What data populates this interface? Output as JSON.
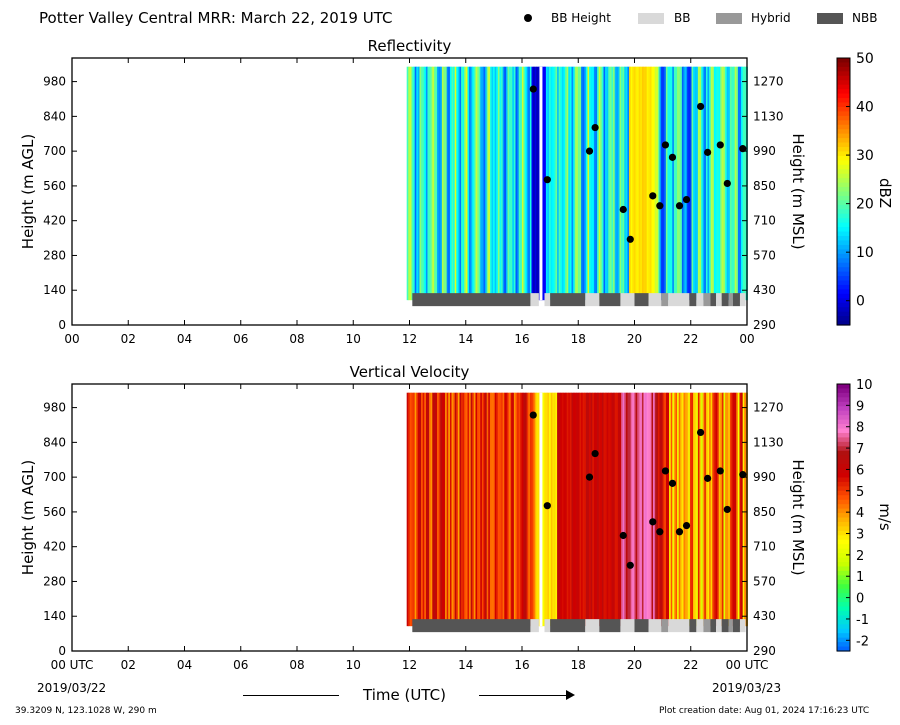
{
  "header": {
    "title": "Potter Valley Central MRR:  March 22, 2019 UTC",
    "legend": [
      {
        "label": "BB Height",
        "color": "#000000",
        "marker": "dot"
      },
      {
        "label": "BB",
        "color": "#d9d9d9",
        "marker": "swatch"
      },
      {
        "label": "Hybrid",
        "color": "#999999",
        "marker": "swatch"
      },
      {
        "label": "NBB",
        "color": "#555555",
        "marker": "swatch"
      }
    ]
  },
  "footer": {
    "location": "39.3209 N, 123.1028 W, 290 m",
    "created": "Plot creation date: Aug 01, 2024 17:16:23 UTC",
    "xlabel": "Time (UTC)",
    "start_date": "2019/03/22",
    "end_date": "2019/03/23"
  },
  "chart_data": [
    {
      "type": "heatmap",
      "title": "Reflectivity",
      "ylabel": "Height (m AGL)",
      "y2label": "Height (m MSL)",
      "colorbar_label": "dBZ",
      "colorbar_range": [
        -5,
        50
      ],
      "colorbar_ticks": [
        "50",
        "40",
        "30",
        "20",
        "10",
        "0"
      ],
      "colormap": [
        "#00007f",
        "#0000ff",
        "#007fff",
        "#00ffff",
        "#7fff7f",
        "#ffff00",
        "#ff7f00",
        "#ff0000",
        "#7f0000"
      ],
      "x_ticks": [
        "00",
        "02",
        "04",
        "06",
        "08",
        "10",
        "12",
        "14",
        "16",
        "18",
        "20",
        "22",
        "00"
      ],
      "xlim": [
        0,
        24
      ],
      "y_ticks": [
        "0",
        "140",
        "280",
        "420",
        "560",
        "700",
        "840",
        "980"
      ],
      "ylim": [
        0,
        1075
      ],
      "y2_ticks": [
        "290",
        "430",
        "570",
        "710",
        "850",
        "990",
        "1130",
        "1270"
      ],
      "data_time_range": [
        11.9,
        24
      ],
      "data_height_range": [
        100,
        1040
      ],
      "bb_points": [
        [
          16.4,
          950
        ],
        [
          16.9,
          585
        ],
        [
          18.4,
          700
        ],
        [
          18.6,
          795
        ],
        [
          19.6,
          465
        ],
        [
          19.85,
          345
        ],
        [
          20.65,
          520
        ],
        [
          20.9,
          480
        ],
        [
          21.1,
          725
        ],
        [
          21.35,
          675
        ],
        [
          21.6,
          480
        ],
        [
          21.85,
          505
        ],
        [
          22.35,
          880
        ],
        [
          22.6,
          695
        ],
        [
          23.05,
          725
        ],
        [
          23.3,
          570
        ],
        [
          23.85,
          710
        ]
      ],
      "bb_bar": [
        {
          "start": 12.1,
          "end": 16.3,
          "type": "NBB"
        },
        {
          "start": 16.3,
          "end": 16.6,
          "type": "BB"
        },
        {
          "start": 16.8,
          "end": 17.0,
          "type": "BB"
        },
        {
          "start": 17.0,
          "end": 18.25,
          "type": "NBB"
        },
        {
          "start": 18.25,
          "end": 18.75,
          "type": "BB"
        },
        {
          "start": 18.75,
          "end": 19.5,
          "type": "NBB"
        },
        {
          "start": 19.5,
          "end": 20.0,
          "type": "BB"
        },
        {
          "start": 20.0,
          "end": 20.5,
          "type": "NBB"
        },
        {
          "start": 20.5,
          "end": 20.95,
          "type": "BB"
        },
        {
          "start": 20.95,
          "end": 21.2,
          "type": "Hybrid"
        },
        {
          "start": 21.2,
          "end": 21.95,
          "type": "BB"
        },
        {
          "start": 21.95,
          "end": 22.2,
          "type": "NBB"
        },
        {
          "start": 22.2,
          "end": 22.45,
          "type": "BB"
        },
        {
          "start": 22.45,
          "end": 22.7,
          "type": "Hybrid"
        },
        {
          "start": 22.7,
          "end": 22.9,
          "type": "NBB"
        },
        {
          "start": 22.9,
          "end": 23.1,
          "type": "BB"
        },
        {
          "start": 23.1,
          "end": 23.35,
          "type": "NBB"
        },
        {
          "start": 23.35,
          "end": 23.5,
          "type": "Hybrid"
        },
        {
          "start": 23.5,
          "end": 23.75,
          "type": "NBB"
        },
        {
          "start": 23.75,
          "end": 23.95,
          "type": "BB"
        }
      ],
      "grid": false
    },
    {
      "type": "heatmap",
      "title": "Vertical Velocity",
      "ylabel": "Height (m AGL)",
      "y2label": "Height (m MSL)",
      "colorbar_label": "m/s",
      "colorbar_range": [
        -2.5,
        10
      ],
      "colorbar_ticks": [
        "10",
        "9",
        "8",
        "7",
        "6",
        "5",
        "4",
        "3",
        "2",
        "1",
        "0",
        "-1",
        "-2"
      ],
      "colormap": [
        "#0050ff",
        "#00c8ff",
        "#00ffb0",
        "#40ff40",
        "#c8ff00",
        "#ffff00",
        "#ffb000",
        "#ff5000",
        "#d00000",
        "#b01010",
        "#ff80d0",
        "#c040c0",
        "#800080"
      ],
      "x_ticks": [
        "00 UTC",
        "02",
        "04",
        "06",
        "08",
        "10",
        "12",
        "14",
        "16",
        "18",
        "20",
        "22",
        "00 UTC"
      ],
      "xlim": [
        0,
        24
      ],
      "y_ticks": [
        "0",
        "140",
        "280",
        "420",
        "560",
        "700",
        "840",
        "980"
      ],
      "ylim": [
        0,
        1075
      ],
      "y2_ticks": [
        "290",
        "430",
        "570",
        "710",
        "850",
        "990",
        "1130",
        "1270"
      ],
      "data_time_range": [
        11.9,
        24
      ],
      "data_height_range": [
        100,
        1040
      ],
      "bb_points": [
        [
          16.4,
          950
        ],
        [
          16.9,
          585
        ],
        [
          18.4,
          700
        ],
        [
          18.6,
          795
        ],
        [
          19.6,
          465
        ],
        [
          19.85,
          345
        ],
        [
          20.65,
          520
        ],
        [
          20.9,
          480
        ],
        [
          21.1,
          725
        ],
        [
          21.35,
          675
        ],
        [
          21.6,
          480
        ],
        [
          21.85,
          505
        ],
        [
          22.35,
          880
        ],
        [
          22.6,
          695
        ],
        [
          23.05,
          725
        ],
        [
          23.3,
          570
        ],
        [
          23.85,
          710
        ]
      ],
      "bb_bar": [
        {
          "start": 12.1,
          "end": 16.3,
          "type": "NBB"
        },
        {
          "start": 16.3,
          "end": 16.6,
          "type": "BB"
        },
        {
          "start": 16.8,
          "end": 17.0,
          "type": "BB"
        },
        {
          "start": 17.0,
          "end": 18.25,
          "type": "NBB"
        },
        {
          "start": 18.25,
          "end": 18.75,
          "type": "BB"
        },
        {
          "start": 18.75,
          "end": 19.5,
          "type": "NBB"
        },
        {
          "start": 19.5,
          "end": 20.0,
          "type": "BB"
        },
        {
          "start": 20.0,
          "end": 20.5,
          "type": "NBB"
        },
        {
          "start": 20.5,
          "end": 20.95,
          "type": "BB"
        },
        {
          "start": 20.95,
          "end": 21.2,
          "type": "Hybrid"
        },
        {
          "start": 21.2,
          "end": 21.95,
          "type": "BB"
        },
        {
          "start": 21.95,
          "end": 22.2,
          "type": "NBB"
        },
        {
          "start": 22.2,
          "end": 22.45,
          "type": "BB"
        },
        {
          "start": 22.45,
          "end": 22.7,
          "type": "Hybrid"
        },
        {
          "start": 22.7,
          "end": 22.9,
          "type": "NBB"
        },
        {
          "start": 22.9,
          "end": 23.1,
          "type": "BB"
        },
        {
          "start": 23.1,
          "end": 23.35,
          "type": "NBB"
        },
        {
          "start": 23.35,
          "end": 23.5,
          "type": "Hybrid"
        },
        {
          "start": 23.5,
          "end": 23.75,
          "type": "NBB"
        },
        {
          "start": 23.75,
          "end": 23.95,
          "type": "BB"
        }
      ],
      "grid": false
    }
  ]
}
